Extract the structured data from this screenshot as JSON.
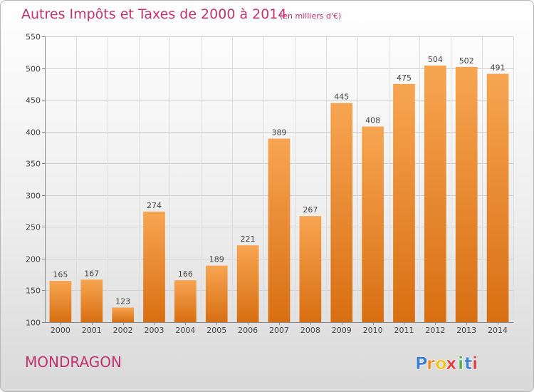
{
  "chart_data": {
    "type": "bar",
    "title": "Autres Impôts et Taxes de 2000 à 2014",
    "subtitle": "(en milliers d'€)",
    "categories": [
      "2000",
      "2001",
      "2002",
      "2003",
      "2004",
      "2005",
      "2006",
      "2007",
      "2008",
      "2009",
      "2010",
      "2011",
      "2012",
      "2013",
      "2014"
    ],
    "values": [
      165,
      167,
      123,
      274,
      166,
      189,
      221,
      389,
      267,
      445,
      408,
      475,
      504,
      502,
      491
    ],
    "ylim": [
      100,
      550
    ],
    "yticks": [
      100,
      150,
      200,
      250,
      300,
      350,
      400,
      450,
      500,
      550
    ],
    "grid": true,
    "bar_color_top": "#f7a552",
    "bar_color_bottom": "#d86f12",
    "label": "MONDRAGON",
    "label_color": "#c0336f"
  },
  "logo": {
    "letters": [
      "P",
      "r",
      "o",
      "x",
      "i",
      "t",
      "i"
    ],
    "colors": [
      "#3a7fd5",
      "#f08a1e",
      "#f2c21c",
      "#e23b3b",
      "#4bb24a",
      "#3a7fd5",
      "#e23b3b"
    ]
  }
}
